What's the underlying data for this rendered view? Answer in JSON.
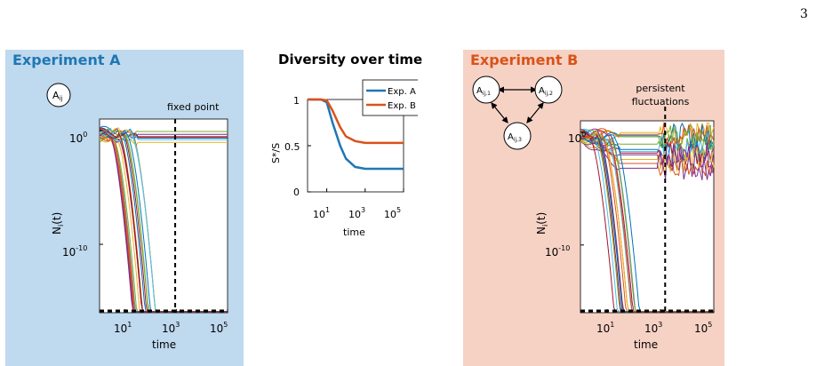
{
  "page_number": "3",
  "panel_a": {
    "title": "Experiment A",
    "node_label": "A",
    "node_sub": "ij",
    "annotation": "fixed point"
  },
  "panel_b": {
    "title": "Experiment B",
    "nodes": [
      {
        "label": "A",
        "sub": "ij,1"
      },
      {
        "label": "A",
        "sub": "ij,2"
      },
      {
        "label": "A",
        "sub": "ij,3"
      }
    ],
    "annotation_line1": "persistent",
    "annotation_line2": "fluctuations"
  },
  "colors": {
    "exp_a": "#1f77b4",
    "exp_b": "#d95319",
    "panel_a_bg": "#bfd9ee",
    "panel_b_bg": "#f6d2c5",
    "palette": [
      "#0072BD",
      "#D95319",
      "#EDB120",
      "#7E2F8E",
      "#77AC30",
      "#4DBEEE",
      "#A2142F"
    ]
  },
  "chart_data": [
    {
      "type": "line",
      "id": "diversity",
      "title": "Diversity over time",
      "xlabel": "time",
      "ylabel": "S*/S",
      "x_scale": "log",
      "xlim": [
        1,
        100000
      ],
      "ylim": [
        0,
        1
      ],
      "x_ticks": [
        "10",
        "10",
        "10"
      ],
      "x_tick_exps": [
        "1",
        "3",
        "5"
      ],
      "y_ticks": [
        "0",
        "0.5",
        "1"
      ],
      "legend_position": "top-right",
      "series": [
        {
          "name": "Exp. A",
          "x": [
            1,
            5,
            10,
            20,
            50,
            100,
            300,
            1000,
            100000
          ],
          "values": [
            1.0,
            1.0,
            0.97,
            0.75,
            0.5,
            0.36,
            0.27,
            0.25,
            0.25
          ]
        },
        {
          "name": "Exp. B",
          "x": [
            1,
            5,
            10,
            20,
            50,
            100,
            300,
            1000,
            100000
          ],
          "values": [
            1.0,
            1.0,
            0.99,
            0.88,
            0.7,
            0.6,
            0.55,
            0.53,
            0.53
          ]
        }
      ]
    },
    {
      "type": "line",
      "id": "panel_a_abundance",
      "xlabel": "time",
      "ylabel": "N_i(t)",
      "x_scale": "log",
      "y_scale": "log",
      "xlim": [
        1,
        100000
      ],
      "ylim": [
        1e-16,
        10.0
      ],
      "x_ticks": [
        "10",
        "10",
        "10"
      ],
      "x_tick_exps": [
        "1",
        "3",
        "5"
      ],
      "y_ticks": [
        "10",
        "10"
      ],
      "y_tick_exps": [
        "0",
        "-10"
      ],
      "vline_x": 900
    },
    {
      "type": "line",
      "id": "panel_b_abundance",
      "xlabel": "time",
      "ylabel": "N_i(t)",
      "x_scale": "log",
      "y_scale": "log",
      "xlim": [
        1,
        100000
      ],
      "ylim": [
        1e-16,
        10.0
      ],
      "x_ticks": [
        "10",
        "10",
        "10"
      ],
      "x_tick_exps": [
        "1",
        "3",
        "5"
      ],
      "y_ticks": [
        "10",
        "10"
      ],
      "y_tick_exps": [
        "0",
        "-10"
      ],
      "vline_x": 1500
    }
  ]
}
